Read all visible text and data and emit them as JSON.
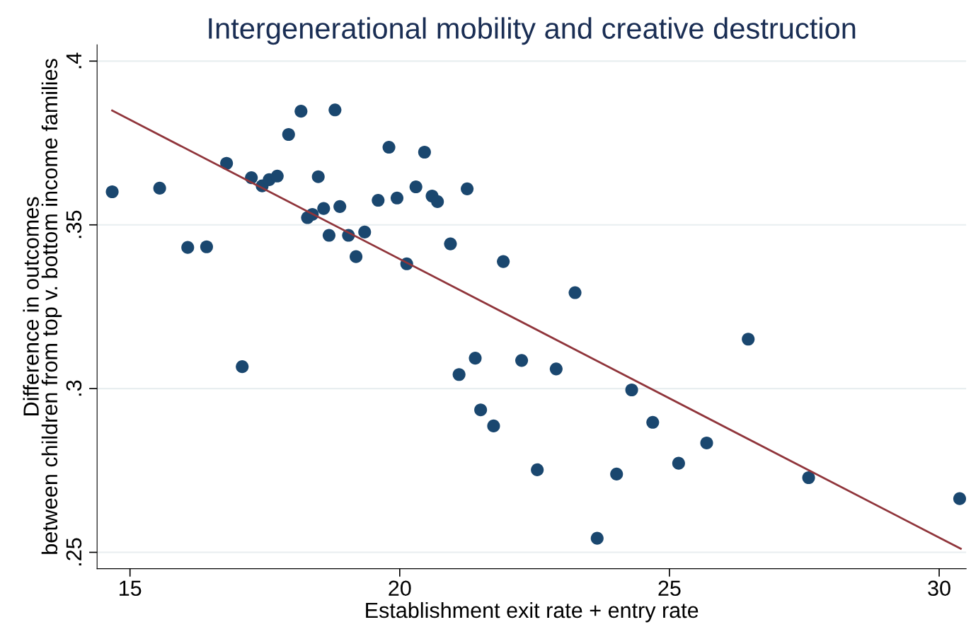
{
  "chart_data": {
    "type": "scatter",
    "title": "Intergenerational mobility and creative destruction",
    "xlabel": "Establishment exit rate + entry rate",
    "ylabel": "Difference in outcomes\nbetween children from top v. bottom income families",
    "xlim": [
      14.39,
      30.5
    ],
    "xticks": [
      15,
      20,
      25,
      30
    ],
    "ylim": [
      0.245,
      0.405
    ],
    "yticks": [
      {
        "value": 0.25,
        "label": ".25"
      },
      {
        "value": 0.3,
        "label": ".3"
      },
      {
        "value": 0.35,
        "label": ".35"
      },
      {
        "value": 0.4,
        "label": ".4"
      }
    ],
    "grid": "y",
    "legend": false,
    "series": [
      {
        "marker": "circle",
        "color": "#1a476f",
        "x": [
          14.67,
          15.55,
          16.07,
          16.42,
          16.79,
          17.08,
          17.25,
          17.45,
          17.58,
          17.73,
          17.94,
          18.17,
          18.29,
          18.38,
          18.49,
          18.59,
          18.69,
          18.8,
          18.89,
          19.05,
          19.19,
          19.35,
          19.6,
          19.8,
          19.95,
          20.13,
          20.3,
          20.46,
          20.6,
          20.7,
          20.94,
          21.1,
          21.25,
          21.4,
          21.5,
          21.74,
          21.92,
          22.26,
          22.55,
          22.9,
          23.25,
          23.66,
          24.02,
          24.3,
          24.69,
          25.17,
          25.69,
          26.46,
          27.58,
          30.38
        ],
        "values": [
          0.3601,
          0.3612,
          0.3431,
          0.3433,
          0.3688,
          0.3067,
          0.3644,
          0.3619,
          0.3638,
          0.3649,
          0.3776,
          0.3847,
          0.3522,
          0.3532,
          0.3647,
          0.355,
          0.3468,
          0.3851,
          0.3556,
          0.3468,
          0.3403,
          0.3478,
          0.3575,
          0.3737,
          0.3582,
          0.3381,
          0.3616,
          0.3722,
          0.3588,
          0.3571,
          0.3442,
          0.3043,
          0.361,
          0.3093,
          0.2935,
          0.2886,
          0.3388,
          0.3086,
          0.2752,
          0.306,
          0.3293,
          0.2543,
          0.2739,
          0.2996,
          0.2897,
          0.2772,
          0.2834,
          0.3151,
          0.2728,
          0.2664
        ]
      },
      {
        "type": "line",
        "marker": "none",
        "color": "#90353b",
        "x": [
          14.67,
          30.4
        ],
        "values": [
          0.3849,
          0.2511
        ]
      }
    ]
  }
}
